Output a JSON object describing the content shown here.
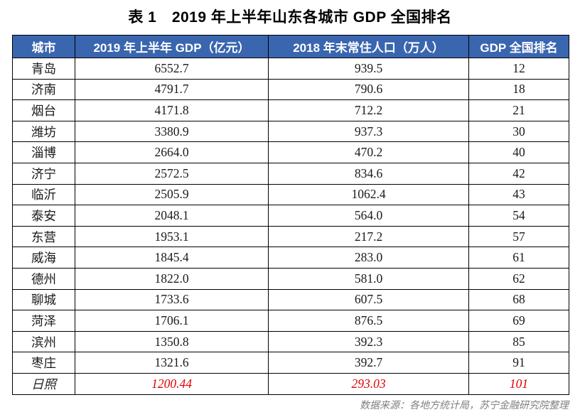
{
  "page": {
    "title": "表 1　2019 年上半年山东各城市 GDP 全国排名",
    "source_note": "数据来源：各地方统计局，苏宁金融研究院整理"
  },
  "colors": {
    "header_bg": "#3A66B0",
    "header_text": "#FFFFFF",
    "body_text": "#1A1A1A",
    "highlight_text": "#E00000",
    "border": "#000000",
    "source_text": "#808080"
  },
  "table": {
    "headers": [
      "城市",
      "2019 年上半年 GDP（亿元）",
      "2018 年末常住人口（万人）",
      "GDP 全国排名"
    ],
    "column_keys": [
      "city",
      "gdp",
      "population",
      "rank"
    ],
    "rows": [
      {
        "city": "青岛",
        "gdp": "6552.7",
        "population": "939.5",
        "rank": "12",
        "highlight": false
      },
      {
        "city": "济南",
        "gdp": "4791.7",
        "population": "790.6",
        "rank": "18",
        "highlight": false
      },
      {
        "city": "烟台",
        "gdp": "4171.8",
        "population": "712.2",
        "rank": "21",
        "highlight": false
      },
      {
        "city": "潍坊",
        "gdp": "3380.9",
        "population": "937.3",
        "rank": "30",
        "highlight": false
      },
      {
        "city": "淄博",
        "gdp": "2664.0",
        "population": "470.2",
        "rank": "40",
        "highlight": false
      },
      {
        "city": "济宁",
        "gdp": "2572.5",
        "population": "834.6",
        "rank": "42",
        "highlight": false
      },
      {
        "city": "临沂",
        "gdp": "2505.9",
        "population": "1062.4",
        "rank": "43",
        "highlight": false
      },
      {
        "city": "泰安",
        "gdp": "2048.1",
        "population": "564.0",
        "rank": "54",
        "highlight": false
      },
      {
        "city": "东营",
        "gdp": "1953.1",
        "population": "217.2",
        "rank": "57",
        "highlight": false
      },
      {
        "city": "威海",
        "gdp": "1845.4",
        "population": "283.0",
        "rank": "61",
        "highlight": false
      },
      {
        "city": "德州",
        "gdp": "1822.0",
        "population": "581.0",
        "rank": "62",
        "highlight": false
      },
      {
        "city": "聊城",
        "gdp": "1733.6",
        "population": "607.5",
        "rank": "68",
        "highlight": false
      },
      {
        "city": "菏泽",
        "gdp": "1706.1",
        "population": "876.5",
        "rank": "69",
        "highlight": false
      },
      {
        "city": "滨州",
        "gdp": "1350.8",
        "population": "392.3",
        "rank": "85",
        "highlight": false
      },
      {
        "city": "枣庄",
        "gdp": "1321.6",
        "population": "392.7",
        "rank": "91",
        "highlight": false
      },
      {
        "city": "日照",
        "gdp": "1200.44",
        "population": "293.03",
        "rank": "101",
        "highlight": true
      }
    ]
  }
}
